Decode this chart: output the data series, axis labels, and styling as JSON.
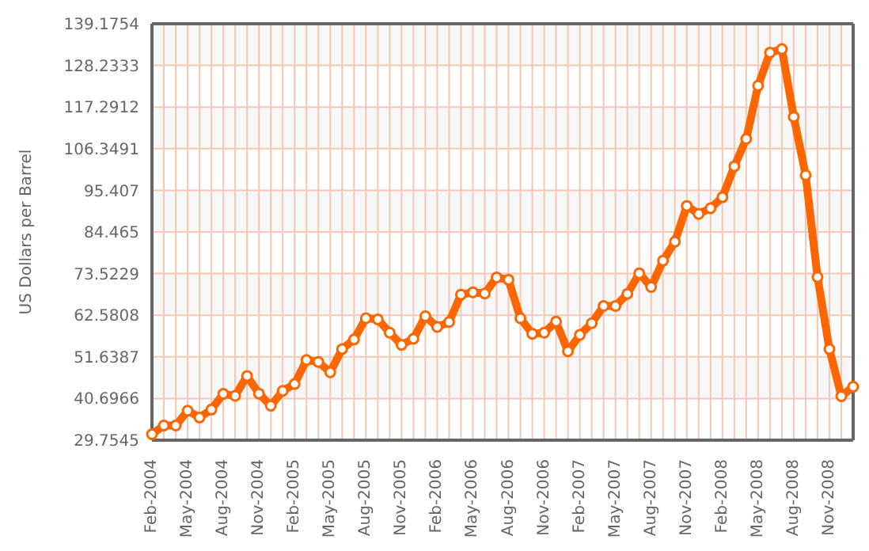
{
  "chart_data": {
    "type": "line",
    "ylabel": "US Dollars per Barrel",
    "categories": [
      "Feb-2004",
      null,
      null,
      "May-2004",
      null,
      null,
      "Aug-2004",
      null,
      null,
      "Nov-2004",
      null,
      null,
      "Feb-2005",
      null,
      null,
      "May-2005",
      null,
      null,
      "Aug-2005",
      null,
      null,
      "Nov-2005",
      null,
      null,
      "Feb-2006",
      null,
      null,
      "May-2006",
      null,
      null,
      "Aug-2006",
      null,
      null,
      "Nov-2006",
      null,
      null,
      "Feb-2007",
      null,
      null,
      "May-2007",
      null,
      null,
      "Aug-2007",
      null,
      null,
      "Nov-2007",
      null,
      null,
      "Feb-2008",
      null,
      null,
      "May-2008",
      null,
      null,
      "Aug-2008",
      null,
      null,
      "Nov-2008",
      null,
      null
    ],
    "series": [
      {
        "color": "#ff6600",
        "values": [
          31.3,
          33.6,
          33.6,
          37.5,
          35.7,
          37.8,
          41.9,
          41.4,
          46.6,
          42.0,
          38.8,
          42.7,
          44.5,
          50.8,
          50.3,
          47.6,
          53.7,
          56.2,
          61.8,
          61.5,
          58.0,
          54.8,
          56.4,
          62.3,
          59.5,
          60.8,
          68.0,
          68.6,
          68.3,
          72.5,
          71.9,
          61.8,
          57.7,
          58.0,
          60.9,
          53.1,
          57.4,
          60.5,
          65.0,
          65.0,
          68.2,
          73.6,
          70.0,
          76.9,
          81.9,
          91.3,
          89.2,
          90.7,
          93.6,
          101.7,
          108.9,
          122.9,
          131.6,
          132.5,
          114.7,
          99.4,
          72.6,
          53.7,
          41.3,
          43.8
        ]
      }
    ],
    "ylim": [
      29.7545,
      139.1754
    ],
    "yticks": [
      29.7545,
      40.6966,
      51.6387,
      62.5808,
      73.5229,
      84.465,
      95.407,
      106.3491,
      117.2912,
      128.2333,
      139.1754
    ],
    "grid": true,
    "marker": "circle",
    "line_style": "solid"
  }
}
